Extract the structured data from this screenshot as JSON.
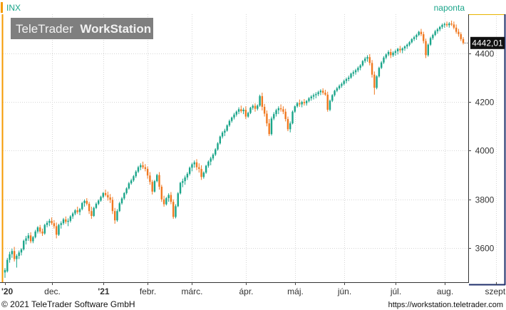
{
  "header": {
    "symbol": "INX",
    "interval": "naponta",
    "watermark_brand": "TeleTrader",
    "watermark_product": "WorkStation"
  },
  "footer": {
    "copyright": "© 2021  TeleTrader Software GmbH",
    "url": "https://workstation.teletrader.com"
  },
  "colors": {
    "up": "#1aa58a",
    "down": "#f07820",
    "grid": "#d6d6d6",
    "accent_orange": "#f59a00",
    "frame_gold": "#e8b400",
    "frame_navy": "#1f2f6b",
    "last_price_bg": "#111111"
  },
  "chart_data": {
    "type": "candlestick",
    "title": "",
    "xlabel": "",
    "ylabel": "",
    "ylim": [
      3460,
      4560
    ],
    "y_ticks": [
      3600,
      3800,
      4000,
      4200,
      4400
    ],
    "y_tick_labels": [
      "3600",
      "3800",
      "4000",
      "4200",
      "4400"
    ],
    "x_ticks": [
      {
        "label": "'20",
        "bold": true,
        "index": 0
      },
      {
        "label": "dec.",
        "bold": false,
        "index": 20
      },
      {
        "label": "'21",
        "bold": true,
        "index": 42
      },
      {
        "label": "febr.",
        "bold": false,
        "index": 61
      },
      {
        "label": "márc.",
        "bold": false,
        "index": 80
      },
      {
        "label": "ápr.",
        "bold": false,
        "index": 103
      },
      {
        "label": "máj.",
        "bold": false,
        "index": 124
      },
      {
        "label": "jún.",
        "bold": false,
        "index": 145
      },
      {
        "label": "júl.",
        "bold": false,
        "index": 167
      },
      {
        "label": "aug.",
        "bold": false,
        "index": 188
      },
      {
        "label": "szept.",
        "bold": false,
        "index": 210
      }
    ],
    "last_price": "4442,01",
    "last_value": 4442.01,
    "candles": [
      [
        3500,
        3518,
        3478,
        3510
      ],
      [
        3505,
        3560,
        3500,
        3552
      ],
      [
        3552,
        3585,
        3540,
        3575
      ],
      [
        3575,
        3598,
        3560,
        3588
      ],
      [
        3588,
        3605,
        3545,
        3555
      ],
      [
        3555,
        3575,
        3520,
        3568
      ],
      [
        3568,
        3590,
        3555,
        3582
      ],
      [
        3582,
        3600,
        3570,
        3595
      ],
      [
        3595,
        3635,
        3590,
        3630
      ],
      [
        3630,
        3650,
        3615,
        3640
      ],
      [
        3640,
        3662,
        3630,
        3652
      ],
      [
        3652,
        3665,
        3620,
        3628
      ],
      [
        3628,
        3650,
        3620,
        3645
      ],
      [
        3645,
        3675,
        3640,
        3668
      ],
      [
        3668,
        3690,
        3660,
        3685
      ],
      [
        3685,
        3695,
        3660,
        3668
      ],
      [
        3668,
        3680,
        3650,
        3660
      ],
      [
        3660,
        3700,
        3655,
        3695
      ],
      [
        3695,
        3712,
        3685,
        3704
      ],
      [
        3704,
        3720,
        3690,
        3712
      ],
      [
        3712,
        3726,
        3695,
        3702
      ],
      [
        3702,
        3715,
        3680,
        3690
      ],
      [
        3690,
        3705,
        3640,
        3655
      ],
      [
        3655,
        3700,
        3650,
        3695
      ],
      [
        3695,
        3710,
        3680,
        3702
      ],
      [
        3702,
        3724,
        3695,
        3718
      ],
      [
        3718,
        3730,
        3700,
        3708
      ],
      [
        3708,
        3722,
        3690,
        3712
      ],
      [
        3712,
        3735,
        3705,
        3730
      ],
      [
        3730,
        3748,
        3720,
        3742
      ],
      [
        3742,
        3760,
        3735,
        3755
      ],
      [
        3755,
        3770,
        3740,
        3748
      ],
      [
        3748,
        3765,
        3735,
        3760
      ],
      [
        3760,
        3790,
        3755,
        3785
      ],
      [
        3785,
        3800,
        3770,
        3794
      ],
      [
        3794,
        3805,
        3775,
        3782
      ],
      [
        3782,
        3790,
        3740,
        3752
      ],
      [
        3752,
        3770,
        3720,
        3732
      ],
      [
        3732,
        3770,
        3728,
        3765
      ],
      [
        3765,
        3788,
        3760,
        3782
      ],
      [
        3782,
        3800,
        3776,
        3795
      ],
      [
        3795,
        3815,
        3790,
        3810
      ],
      [
        3810,
        3830,
        3805,
        3826
      ],
      [
        3826,
        3840,
        3812,
        3818
      ],
      [
        3818,
        3832,
        3795,
        3808
      ],
      [
        3808,
        3822,
        3785,
        3798
      ],
      [
        3798,
        3810,
        3740,
        3752
      ],
      [
        3752,
        3765,
        3700,
        3714
      ],
      [
        3714,
        3760,
        3708,
        3752
      ],
      [
        3752,
        3790,
        3748,
        3784
      ],
      [
        3784,
        3810,
        3778,
        3804
      ],
      [
        3804,
        3830,
        3798,
        3826
      ],
      [
        3826,
        3850,
        3820,
        3845
      ],
      [
        3845,
        3872,
        3840,
        3866
      ],
      [
        3866,
        3885,
        3860,
        3878
      ],
      [
        3878,
        3900,
        3872,
        3895
      ],
      [
        3895,
        3920,
        3888,
        3914
      ],
      [
        3914,
        3938,
        3908,
        3932
      ],
      [
        3932,
        3948,
        3920,
        3940
      ],
      [
        3940,
        3955,
        3925,
        3932
      ],
      [
        3932,
        3945,
        3915,
        3925
      ],
      [
        3925,
        3935,
        3885,
        3898
      ],
      [
        3898,
        3912,
        3860,
        3872
      ],
      [
        3872,
        3880,
        3820,
        3832
      ],
      [
        3832,
        3880,
        3828,
        3875
      ],
      [
        3875,
        3905,
        3870,
        3900
      ],
      [
        3900,
        3912,
        3840,
        3852
      ],
      [
        3852,
        3860,
        3790,
        3800
      ],
      [
        3800,
        3815,
        3770,
        3780
      ],
      [
        3780,
        3810,
        3775,
        3805
      ],
      [
        3805,
        3825,
        3790,
        3818
      ],
      [
        3818,
        3830,
        3780,
        3790
      ],
      [
        3790,
        3800,
        3720,
        3728
      ],
      [
        3728,
        3780,
        3722,
        3772
      ],
      [
        3772,
        3830,
        3768,
        3825
      ],
      [
        3825,
        3872,
        3820,
        3868
      ],
      [
        3868,
        3885,
        3850,
        3875
      ],
      [
        3875,
        3898,
        3860,
        3890
      ],
      [
        3890,
        3912,
        3880,
        3905
      ],
      [
        3905,
        3935,
        3898,
        3930
      ],
      [
        3930,
        3950,
        3915,
        3944
      ],
      [
        3944,
        3960,
        3930,
        3952
      ],
      [
        3952,
        3965,
        3920,
        3932
      ],
      [
        3932,
        3948,
        3910,
        3925
      ],
      [
        3925,
        3940,
        3880,
        3892
      ],
      [
        3892,
        3915,
        3885,
        3910
      ],
      [
        3910,
        3942,
        3905,
        3938
      ],
      [
        3938,
        3960,
        3930,
        3955
      ],
      [
        3955,
        3975,
        3940,
        3968
      ],
      [
        3968,
        3990,
        3960,
        3984
      ],
      [
        3984,
        4010,
        3978,
        4005
      ],
      [
        4005,
        4035,
        4000,
        4030
      ],
      [
        4030,
        4062,
        4025,
        4058
      ],
      [
        4058,
        4080,
        4050,
        4074
      ],
      [
        4074,
        4090,
        4060,
        4082
      ],
      [
        4082,
        4108,
        4078,
        4104
      ],
      [
        4104,
        4128,
        4098,
        4122
      ],
      [
        4122,
        4140,
        4115,
        4136
      ],
      [
        4136,
        4155,
        4128,
        4148
      ],
      [
        4148,
        4165,
        4140,
        4160
      ],
      [
        4160,
        4178,
        4150,
        4170
      ],
      [
        4170,
        4185,
        4155,
        4162
      ],
      [
        4162,
        4176,
        4150,
        4168
      ],
      [
        4168,
        4182,
        4130,
        4140
      ],
      [
        4140,
        4160,
        4135,
        4155
      ],
      [
        4155,
        4180,
        4150,
        4176
      ],
      [
        4176,
        4190,
        4168,
        4184
      ],
      [
        4184,
        4194,
        4160,
        4172
      ],
      [
        4172,
        4190,
        4165,
        4185
      ],
      [
        4185,
        4230,
        4180,
        4224
      ],
      [
        4224,
        4238,
        4165,
        4180
      ],
      [
        4180,
        4192,
        4140,
        4152
      ],
      [
        4152,
        4165,
        4100,
        4112
      ],
      [
        4112,
        4130,
        4060,
        4068
      ],
      [
        4068,
        4140,
        4062,
        4132
      ],
      [
        4132,
        4158,
        4125,
        4150
      ],
      [
        4150,
        4172,
        4140,
        4166
      ],
      [
        4166,
        4182,
        4150,
        4174
      ],
      [
        4174,
        4190,
        4160,
        4170
      ],
      [
        4170,
        4182,
        4150,
        4160
      ],
      [
        4160,
        4172,
        4120,
        4130
      ],
      [
        4130,
        4140,
        4080,
        4088
      ],
      [
        4088,
        4120,
        4075,
        4112
      ],
      [
        4112,
        4165,
        4108,
        4160
      ],
      [
        4160,
        4186,
        4155,
        4182
      ],
      [
        4182,
        4200,
        4176,
        4195
      ],
      [
        4195,
        4210,
        4180,
        4190
      ],
      [
        4190,
        4205,
        4178,
        4200
      ],
      [
        4200,
        4212,
        4185,
        4195
      ],
      [
        4195,
        4208,
        4185,
        4204
      ],
      [
        4204,
        4220,
        4198,
        4215
      ],
      [
        4215,
        4228,
        4205,
        4222
      ],
      [
        4222,
        4235,
        4210,
        4228
      ],
      [
        4228,
        4240,
        4215,
        4232
      ],
      [
        4232,
        4246,
        4224,
        4240
      ],
      [
        4240,
        4252,
        4228,
        4246
      ],
      [
        4246,
        4256,
        4230,
        4238
      ],
      [
        4238,
        4250,
        4225,
        4230
      ],
      [
        4230,
        4242,
        4160,
        4168
      ],
      [
        4168,
        4210,
        4162,
        4205
      ],
      [
        4205,
        4232,
        4200,
        4228
      ],
      [
        4228,
        4250,
        4222,
        4246
      ],
      [
        4246,
        4262,
        4240,
        4256
      ],
      [
        4256,
        4272,
        4250,
        4266
      ],
      [
        4266,
        4280,
        4258,
        4274
      ],
      [
        4274,
        4292,
        4268,
        4286
      ],
      [
        4286,
        4300,
        4276,
        4294
      ],
      [
        4294,
        4308,
        4285,
        4300
      ],
      [
        4300,
        4320,
        4295,
        4316
      ],
      [
        4316,
        4330,
        4305,
        4322
      ],
      [
        4322,
        4336,
        4312,
        4330
      ],
      [
        4330,
        4346,
        4322,
        4340
      ],
      [
        4340,
        4355,
        4330,
        4350
      ],
      [
        4350,
        4372,
        4345,
        4368
      ],
      [
        4368,
        4385,
        4360,
        4378
      ],
      [
        4378,
        4392,
        4365,
        4384
      ],
      [
        4384,
        4396,
        4350,
        4360
      ],
      [
        4360,
        4372,
        4300,
        4312
      ],
      [
        4312,
        4325,
        4230,
        4258
      ],
      [
        4258,
        4310,
        4252,
        4305
      ],
      [
        4305,
        4345,
        4300,
        4340
      ],
      [
        4340,
        4368,
        4335,
        4362
      ],
      [
        4362,
        4388,
        4356,
        4382
      ],
      [
        4382,
        4400,
        4375,
        4395
      ],
      [
        4395,
        4412,
        4388,
        4405
      ],
      [
        4405,
        4418,
        4380,
        4392
      ],
      [
        4392,
        4408,
        4385,
        4402
      ],
      [
        4402,
        4415,
        4390,
        4408
      ],
      [
        4408,
        4422,
        4395,
        4418
      ],
      [
        4418,
        4430,
        4402,
        4412
      ],
      [
        4412,
        4424,
        4400,
        4420
      ],
      [
        4420,
        4432,
        4410,
        4428
      ],
      [
        4428,
        4440,
        4418,
        4435
      ],
      [
        4435,
        4450,
        4428,
        4445
      ],
      [
        4445,
        4462,
        4440,
        4458
      ],
      [
        4458,
        4472,
        4450,
        4466
      ],
      [
        4466,
        4480,
        4455,
        4475
      ],
      [
        4475,
        4492,
        4470,
        4488
      ],
      [
        4488,
        4500,
        4470,
        4478
      ],
      [
        4478,
        4488,
        4440,
        4450
      ],
      [
        4450,
        4460,
        4380,
        4392
      ],
      [
        4392,
        4440,
        4386,
        4435
      ],
      [
        4435,
        4468,
        4430,
        4462
      ],
      [
        4462,
        4480,
        4455,
        4475
      ],
      [
        4475,
        4496,
        4470,
        4490
      ],
      [
        4490,
        4504,
        4480,
        4498
      ],
      [
        4498,
        4512,
        4490,
        4508
      ],
      [
        4508,
        4522,
        4500,
        4516
      ],
      [
        4516,
        4526,
        4505,
        4520
      ],
      [
        4520,
        4530,
        4508,
        4515
      ],
      [
        4515,
        4528,
        4505,
        4522
      ],
      [
        4522,
        4534,
        4512,
        4518
      ],
      [
        4518,
        4530,
        4498,
        4505
      ],
      [
        4505,
        4518,
        4480,
        4488
      ],
      [
        4488,
        4500,
        4468,
        4478
      ],
      [
        4478,
        4486,
        4450,
        4458
      ],
      [
        4458,
        4466,
        4436,
        4442
      ]
    ]
  }
}
